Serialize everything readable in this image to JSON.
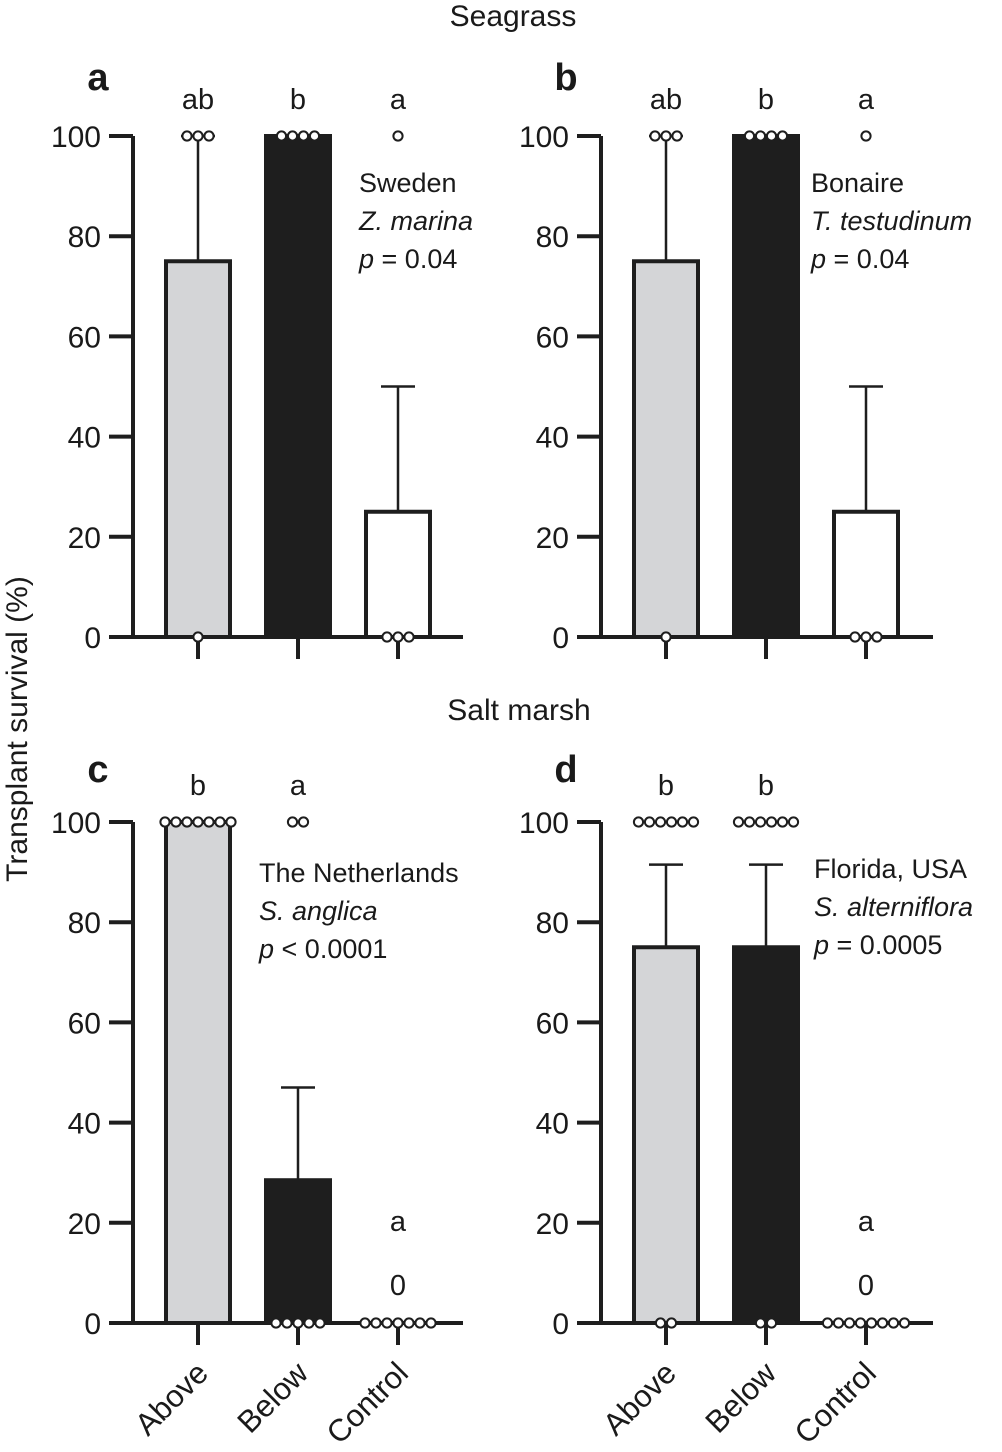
{
  "figure": {
    "ylabel": "Transplant survival (%)",
    "categories": [
      "Above",
      "Below",
      "Control"
    ],
    "section_titles": [
      "Seagrass",
      "Salt marsh"
    ],
    "colors": {
      "Above": "#d4d5d7",
      "Below": "#1e1e1e",
      "Control": "#ffffff",
      "axis": "#1e1e1e"
    }
  },
  "chart_data": [
    {
      "type": "bar",
      "panel": "a",
      "section": "Seagrass",
      "categories": [
        "Above",
        "Below",
        "Control"
      ],
      "values": [
        75,
        100,
        25
      ],
      "error_upper": [
        100,
        100,
        50
      ],
      "points": [
        [
          100,
          100,
          100,
          0
        ],
        [
          100,
          100,
          100,
          100
        ],
        [
          100,
          0,
          0,
          0
        ]
      ],
      "sig_letters": [
        "ab",
        "b",
        "a"
      ],
      "note": {
        "site": "Sweden",
        "species": "Z. marina",
        "p_label": "p",
        "p_value": "= 0.04"
      },
      "yticks": [
        0,
        20,
        40,
        60,
        80,
        100
      ],
      "ylim": [
        0,
        100
      ]
    },
    {
      "type": "bar",
      "panel": "b",
      "section": "Seagrass",
      "categories": [
        "Above",
        "Below",
        "Control"
      ],
      "values": [
        75,
        100,
        25
      ],
      "error_upper": [
        100,
        100,
        50
      ],
      "points": [
        [
          100,
          100,
          100,
          0
        ],
        [
          100,
          100,
          100,
          100
        ],
        [
          100,
          0,
          0,
          0
        ]
      ],
      "sig_letters": [
        "ab",
        "b",
        "a"
      ],
      "note": {
        "site": "Bonaire",
        "species": "T. testudinum",
        "p_label": "p",
        "p_value": "= 0.04"
      },
      "yticks": [
        0,
        20,
        40,
        60,
        80,
        100
      ],
      "ylim": [
        0,
        100
      ]
    },
    {
      "type": "bar",
      "panel": "c",
      "section": "Salt marsh",
      "categories": [
        "Above",
        "Below",
        "Control"
      ],
      "values": [
        100,
        28.5,
        0
      ],
      "error_upper": [
        100,
        47,
        0
      ],
      "points": [
        [
          100,
          100,
          100,
          100,
          100,
          100,
          100
        ],
        [
          100,
          100,
          0,
          0,
          0,
          0,
          0
        ],
        [
          0,
          0,
          0,
          0,
          0,
          0,
          0
        ]
      ],
      "sig_letters": [
        "b",
        "a",
        "a"
      ],
      "zero_label": "0",
      "note": {
        "site": "The Netherlands",
        "species": "S. anglica",
        "p_label": "p",
        "p_value": "< 0.0001"
      },
      "yticks": [
        0,
        20,
        40,
        60,
        80,
        100
      ],
      "ylim": [
        0,
        100
      ]
    },
    {
      "type": "bar",
      "panel": "d",
      "section": "Salt marsh",
      "categories": [
        "Above",
        "Below",
        "Control"
      ],
      "values": [
        75,
        75,
        0
      ],
      "error_upper": [
        91.5,
        91.5,
        0
      ],
      "points": [
        [
          100,
          100,
          100,
          100,
          100,
          100,
          0,
          0
        ],
        [
          100,
          100,
          100,
          100,
          100,
          100,
          0,
          0
        ],
        [
          0,
          0,
          0,
          0,
          0,
          0,
          0,
          0
        ]
      ],
      "sig_letters": [
        "b",
        "b",
        "a"
      ],
      "zero_label": "0",
      "note": {
        "site": "Florida, USA",
        "species": "S. alterniflora",
        "p_label": "p",
        "p_value": "= 0.0005"
      },
      "yticks": [
        0,
        20,
        40,
        60,
        80,
        100
      ],
      "ylim": [
        0,
        100
      ]
    }
  ]
}
